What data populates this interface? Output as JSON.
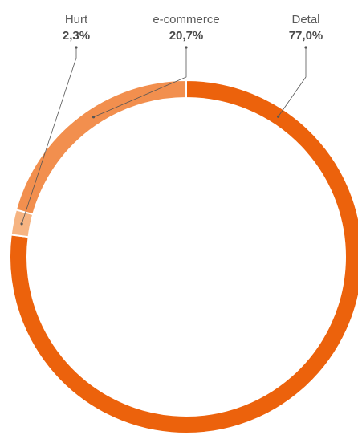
{
  "chart_data": {
    "type": "pie",
    "variant": "donut",
    "unit": "%",
    "slices": [
      {
        "label": "Detal",
        "value": 77.0,
        "display": "77,0%",
        "color": "#EC620C"
      },
      {
        "label": "Hurt",
        "value": 2.3,
        "display": "2,3%",
        "color": "#F6B482"
      },
      {
        "label": "e-commerce",
        "value": 20.7,
        "display": "20,7%",
        "color": "#F28F4E"
      }
    ],
    "legend": "none",
    "start_angle": "top",
    "direction": "clockwise"
  },
  "colors": {
    "segment_separator": "#ffffff",
    "leader_line": "#555555"
  }
}
